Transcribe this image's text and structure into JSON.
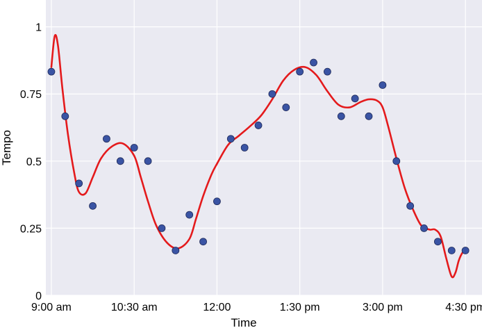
{
  "chart_data": {
    "type": "scatter",
    "title": "",
    "xlabel": "Time",
    "ylabel": "Tempo",
    "x_unit": "hours after 9:00 am",
    "xlim": [
      -0.1,
      7.8
    ],
    "ylim": [
      0,
      1.1
    ],
    "grid": true,
    "background_color": "#eaeaf2",
    "grid_color": "#ffffff",
    "x_ticks": [
      {
        "value": 0,
        "label": "9:00 am"
      },
      {
        "value": 1.5,
        "label": "10:30 am"
      },
      {
        "value": 3,
        "label": "12:00"
      },
      {
        "value": 4.5,
        "label": "1:30 pm"
      },
      {
        "value": 6,
        "label": "3:00 pm"
      },
      {
        "value": 7.5,
        "label": "4:30 pm"
      }
    ],
    "y_ticks": [
      {
        "value": 0,
        "label": "0"
      },
      {
        "value": 0.25,
        "label": "0.25"
      },
      {
        "value": 0.5,
        "label": "0.5"
      },
      {
        "value": 0.75,
        "label": "0.75"
      },
      {
        "value": 1,
        "label": "1"
      }
    ],
    "series": [
      {
        "kind": "scatter",
        "color": "#3a54a4",
        "edge_color": "#1f2a5a",
        "x": [
          0,
          0.25,
          0.5,
          0.75,
          1.0,
          1.25,
          1.5,
          1.75,
          2.0,
          2.25,
          2.5,
          2.75,
          3.0,
          3.25,
          3.5,
          3.75,
          4.0,
          4.25,
          4.5,
          4.75,
          5.0,
          5.25,
          5.5,
          5.75,
          6.0,
          6.25,
          6.5,
          6.75,
          7.0,
          7.25,
          7.5
        ],
        "y": [
          0.833,
          0.667,
          0.417,
          0.333,
          0.583,
          0.5,
          0.55,
          0.5,
          0.25,
          0.167,
          0.3,
          0.2,
          0.35,
          0.583,
          0.55,
          0.633,
          0.75,
          0.7,
          0.833,
          0.867,
          0.833,
          0.667,
          0.733,
          0.667,
          0.783,
          0.5,
          0.333,
          0.25,
          0.2,
          0.167,
          0.167
        ]
      },
      {
        "kind": "line",
        "color": "#e41a1c",
        "x": [
          0,
          0.06,
          0.12,
          0.2,
          0.3,
          0.42,
          0.5,
          0.62,
          0.75,
          0.9,
          1.1,
          1.3,
          1.5,
          1.62,
          1.75,
          1.9,
          2.1,
          2.3,
          2.5,
          2.62,
          2.75,
          2.9,
          3.0,
          3.2,
          3.4,
          3.6,
          3.8,
          4.0,
          4.2,
          4.4,
          4.6,
          4.8,
          5.0,
          5.2,
          5.4,
          5.6,
          5.75,
          5.9,
          6.0,
          6.1,
          6.25,
          6.4,
          6.55,
          6.7,
          6.85,
          6.95,
          7.05,
          7.15,
          7.25,
          7.32,
          7.38,
          7.45,
          7.5
        ],
        "y": [
          0.85,
          0.965,
          0.93,
          0.77,
          0.6,
          0.45,
          0.385,
          0.38,
          0.44,
          0.51,
          0.555,
          0.565,
          0.52,
          0.44,
          0.35,
          0.26,
          0.195,
          0.175,
          0.21,
          0.285,
          0.37,
          0.45,
          0.49,
          0.56,
          0.595,
          0.63,
          0.67,
          0.73,
          0.8,
          0.84,
          0.85,
          0.82,
          0.76,
          0.71,
          0.7,
          0.72,
          0.73,
          0.725,
          0.7,
          0.63,
          0.51,
          0.4,
          0.32,
          0.26,
          0.245,
          0.245,
          0.22,
          0.14,
          0.07,
          0.085,
          0.13,
          0.16,
          0.165
        ]
      }
    ]
  }
}
